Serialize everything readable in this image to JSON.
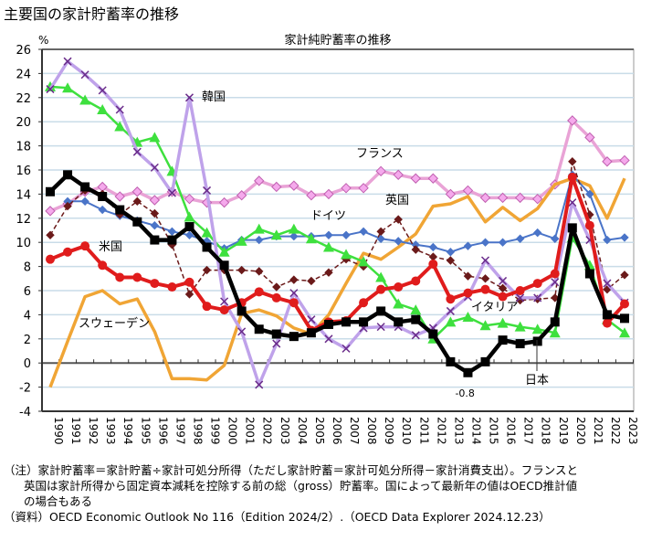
{
  "page_title": "主要国の家計貯蓄率の推移",
  "notes": [
    "（注）家計貯蓄率＝家計貯蓄÷家計可処分所得（ただし家計貯蓄＝家計可処分所得－家計消費支出）。フランスと",
    "英国は家計所得から固定資本減耗を控除する前の総（gross）貯蓄率。国によって最新年の値はOECD推計値",
    "の場合もある",
    "（資料）OECD Economic Outlook No 116（Edition 2024/2）.（OECD Data Explorer 2024.12.23）"
  ],
  "chart_data": {
    "type": "line",
    "title": "家計純貯蓄率の推移",
    "ylabel": "%",
    "xlabel": "",
    "ylim": [
      -4,
      26
    ],
    "yticks": [
      -4,
      -2,
      0,
      2,
      4,
      6,
      8,
      10,
      12,
      14,
      16,
      18,
      20,
      22,
      24,
      26
    ],
    "grid": true,
    "legend": "inline labels",
    "x": [
      1990,
      1991,
      1992,
      1993,
      1994,
      1995,
      1996,
      1997,
      1998,
      1999,
      2000,
      2001,
      2002,
      2003,
      2004,
      2005,
      2006,
      2007,
      2008,
      2009,
      2010,
      2011,
      2012,
      2013,
      2014,
      2015,
      2016,
      2017,
      2018,
      2019,
      2020,
      2021,
      2022,
      2023
    ],
    "annotations": [
      {
        "text": "-0.8",
        "x": 2014,
        "y": -0.8
      }
    ],
    "series": [
      {
        "name": "フランス",
        "label": "フランス",
        "color": "#e9a3d6",
        "marker": "diamond",
        "marker_color": "#f5a9ec",
        "dashed": false,
        "values": [
          12.6,
          13.2,
          14.2,
          14.6,
          13.8,
          14.2,
          13.5,
          14.2,
          13.6,
          13.3,
          13.3,
          13.9,
          15.1,
          14.6,
          14.7,
          13.9,
          14.0,
          14.5,
          14.5,
          15.9,
          15.6,
          15.3,
          15.3,
          14.0,
          14.3,
          13.7,
          13.7,
          13.7,
          13.6,
          14.8,
          20.1,
          18.7,
          16.7,
          16.8
        ]
      },
      {
        "name": "スウェーデン",
        "label": "スウェーデン",
        "color": "#f0a535",
        "marker": "none",
        "marker_color": "#f0a535",
        "dashed": false,
        "values": [
          -2.0,
          1.8,
          5.5,
          6.0,
          4.9,
          5.3,
          2.6,
          -1.3,
          -1.3,
          -1.4,
          -0.2,
          4.1,
          4.4,
          3.9,
          2.9,
          2.4,
          4.0,
          6.6,
          9.1,
          8.6,
          9.6,
          10.7,
          13.0,
          13.2,
          13.8,
          11.7,
          12.9,
          11.8,
          12.8,
          14.8,
          15.3,
          14.7,
          12.0,
          15.3
        ]
      },
      {
        "name": "ドイツ",
        "label": "ドイツ",
        "color": "#4a74c8",
        "marker": "diamond",
        "marker_color": "#4a74c8",
        "dashed": false,
        "values": [
          null,
          13.4,
          13.4,
          12.7,
          12.2,
          11.8,
          11.4,
          10.9,
          10.6,
          10.1,
          9.5,
          10.2,
          10.2,
          10.5,
          10.5,
          10.5,
          10.6,
          10.6,
          10.9,
          10.3,
          10.1,
          9.8,
          9.6,
          9.2,
          9.7,
          10.0,
          10.0,
          10.3,
          10.8,
          10.3,
          15.6,
          14.0,
          10.2,
          10.4
        ]
      },
      {
        "name": "英国",
        "label": "英国",
        "color": "#6b1a1a",
        "marker": "diamond",
        "marker_color": "#6b1a1a",
        "dashed": true,
        "values": [
          10.6,
          13.0,
          14.3,
          14.0,
          12.3,
          13.4,
          12.4,
          9.8,
          5.7,
          7.7,
          7.7,
          7.7,
          7.6,
          6.3,
          6.9,
          6.8,
          7.5,
          8.6,
          8.0,
          10.9,
          11.9,
          9.4,
          8.8,
          8.5,
          7.2,
          7.0,
          6.2,
          5.2,
          5.3,
          5.4,
          16.7,
          12.3,
          6.1,
          7.3
        ]
      },
      {
        "name": "イタリア",
        "label": "イタリア",
        "color": "#3ee03e",
        "marker": "triangle",
        "marker_color": "#3ee03e",
        "dashed": false,
        "values": [
          22.9,
          22.8,
          21.8,
          21.0,
          19.6,
          18.3,
          18.7,
          15.9,
          12.1,
          10.8,
          9.2,
          10.1,
          11.1,
          10.6,
          11.1,
          10.3,
          9.6,
          9.0,
          8.4,
          7.1,
          4.9,
          4.4,
          2.0,
          3.4,
          3.8,
          3.1,
          3.3,
          3.0,
          2.8,
          2.5,
          10.4,
          8.1,
          3.6,
          2.5
        ]
      },
      {
        "name": "韓国",
        "label": "韓国",
        "color": "#bfa2ea",
        "marker": "x",
        "marker_color": "#6a2c8a",
        "dashed": false,
        "values": [
          22.7,
          25.0,
          23.9,
          22.6,
          21.0,
          17.5,
          16.2,
          14.1,
          22.0,
          14.3,
          5.1,
          2.6,
          -1.8,
          1.6,
          5.8,
          3.6,
          2.0,
          1.2,
          2.9,
          3.0,
          3.0,
          2.3,
          2.9,
          4.3,
          5.5,
          8.5,
          6.8,
          5.4,
          5.4,
          6.7,
          13.3,
          10.2,
          6.6,
          5.0
        ]
      },
      {
        "name": "米国",
        "label": "米国",
        "color": "#e01c1c",
        "marker": "circle",
        "marker_color": "#e01c1c",
        "dashed": false,
        "values": [
          8.6,
          9.2,
          9.7,
          8.1,
          7.1,
          7.1,
          6.6,
          6.3,
          6.7,
          4.7,
          4.4,
          5.0,
          5.9,
          5.4,
          5.0,
          2.7,
          3.4,
          3.5,
          5.0,
          6.1,
          6.3,
          6.8,
          8.2,
          5.3,
          5.8,
          6.1,
          5.5,
          6.0,
          6.6,
          7.4,
          15.4,
          11.4,
          3.3,
          4.9
        ]
      },
      {
        "name": "日本",
        "label": "日本",
        "color": "#000000",
        "marker": "square",
        "marker_color": "#000000",
        "dashed": false,
        "values": [
          14.2,
          15.6,
          14.6,
          13.8,
          12.7,
          11.7,
          10.2,
          10.2,
          11.3,
          9.6,
          8.1,
          4.3,
          2.8,
          2.4,
          2.2,
          2.5,
          3.2,
          3.4,
          3.4,
          4.3,
          3.4,
          3.6,
          2.4,
          0.1,
          -0.8,
          0.1,
          1.9,
          1.6,
          1.8,
          3.4,
          11.2,
          7.4,
          4.0,
          3.7
        ]
      }
    ]
  }
}
